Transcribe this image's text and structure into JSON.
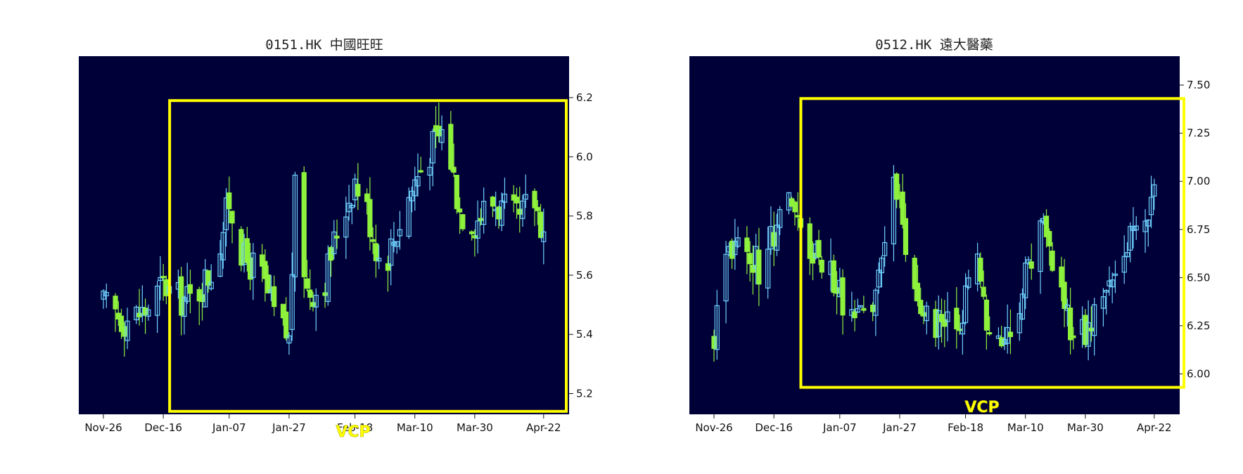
{
  "chart_data": [
    {
      "type": "candlestick",
      "title": "0151.HK 中國旺旺",
      "xlabel": "",
      "ylabel": "",
      "x_tick_labels": [
        "Nov-26",
        "Dec-16",
        "Jan-07",
        "Jan-27",
        "Feb-18",
        "Mar-10",
        "Mar-30",
        "Apr-22"
      ],
      "y_ticks": [
        5.2,
        5.4,
        5.6,
        5.8,
        6.0,
        6.2
      ],
      "ylim": [
        5.13,
        6.34
      ],
      "y_axis_side": "right",
      "background_color": "#000038",
      "up_color": "#6fd3ff",
      "down_color": "#8ef23c",
      "annotation": {
        "label": "VCP",
        "color": "#ffff00",
        "x_from": "Dec-16",
        "x_to": "Apr-22",
        "y_range": [
          5.14,
          6.19
        ]
      },
      "series": {
        "name": "",
        "close_points": [
          [
            "Nov-26",
            5.5
          ],
          [
            "Dec-03",
            5.45
          ],
          [
            "Dec-10",
            5.48
          ],
          [
            "Dec-16",
            5.57
          ],
          [
            "Dec-20",
            5.52
          ],
          [
            "Dec-26",
            5.52
          ],
          [
            "Jan-02",
            5.63
          ],
          [
            "Jan-07",
            5.85
          ],
          [
            "Jan-12",
            5.65
          ],
          [
            "Jan-17",
            5.62
          ],
          [
            "Jan-22",
            5.47
          ],
          [
            "Jan-27",
            5.38
          ],
          [
            "Jan-29",
            5.88
          ],
          [
            "Feb-02",
            5.55
          ],
          [
            "Feb-07",
            5.55
          ],
          [
            "Feb-12",
            5.75
          ],
          [
            "Feb-18",
            5.92
          ],
          [
            "Feb-22",
            5.82
          ],
          [
            "Feb-27",
            5.62
          ],
          [
            "Mar-04",
            5.75
          ],
          [
            "Mar-10",
            5.92
          ],
          [
            "Mar-15",
            6.02
          ],
          [
            "Mar-20",
            6.1
          ],
          [
            "Mar-25",
            5.82
          ],
          [
            "Mar-30",
            5.78
          ],
          [
            "Apr-04",
            5.85
          ],
          [
            "Apr-09",
            5.82
          ],
          [
            "Apr-14",
            5.78
          ],
          [
            "Apr-18",
            5.88
          ],
          [
            "Apr-22",
            5.75
          ]
        ],
        "intraday_range": 0.15
      }
    },
    {
      "type": "candlestick",
      "title": "0512.HK 遠大醫藥",
      "xlabel": "",
      "ylabel": "",
      "x_tick_labels": [
        "Nov-26",
        "Dec-16",
        "Jan-07",
        "Jan-27",
        "Feb-18",
        "Mar-10",
        "Mar-30",
        "Apr-22"
      ],
      "y_ticks": [
        6.0,
        6.25,
        6.5,
        6.75,
        7.0,
        7.25,
        7.5
      ],
      "y_tick_labels": [
        "6.00",
        "6.25",
        "6.50",
        "6.75",
        "7.00",
        "7.25",
        "7.50"
      ],
      "ylim": [
        5.79,
        7.65
      ],
      "y_axis_side": "right",
      "background_color": "#000038",
      "up_color": "#6fd3ff",
      "down_color": "#8ef23c",
      "annotation": {
        "label": "VCP",
        "color": "#ffff00",
        "x_from": "Dec-25",
        "x_to": "Apr-22",
        "y_range": [
          5.93,
          7.43
        ]
      },
      "series": {
        "name": "",
        "close_points": [
          [
            "Nov-26",
            6.2
          ],
          [
            "Dec-01",
            6.65
          ],
          [
            "Dec-06",
            6.7
          ],
          [
            "Dec-11",
            6.55
          ],
          [
            "Dec-16",
            6.75
          ],
          [
            "Dec-20",
            6.95
          ],
          [
            "Dec-25",
            6.7
          ],
          [
            "Jan-02",
            6.6
          ],
          [
            "Jan-07",
            6.4
          ],
          [
            "Jan-12",
            6.25
          ],
          [
            "Jan-17",
            6.3
          ],
          [
            "Jan-21",
            6.55
          ],
          [
            "Jan-24",
            7.1
          ],
          [
            "Jan-27",
            6.9
          ],
          [
            "Jan-31",
            6.5
          ],
          [
            "Feb-05",
            6.3
          ],
          [
            "Feb-10",
            6.25
          ],
          [
            "Feb-15",
            6.25
          ],
          [
            "Feb-18",
            6.4
          ],
          [
            "Feb-21",
            6.65
          ],
          [
            "Feb-25",
            6.3
          ],
          [
            "Mar-01",
            6.15
          ],
          [
            "Mar-05",
            6.2
          ],
          [
            "Mar-10",
            6.5
          ],
          [
            "Mar-15",
            6.8
          ],
          [
            "Mar-20",
            6.5
          ],
          [
            "Mar-25",
            6.25
          ],
          [
            "Mar-30",
            6.2
          ],
          [
            "Apr-04",
            6.35
          ],
          [
            "Apr-09",
            6.5
          ],
          [
            "Apr-14",
            6.7
          ],
          [
            "Apr-18",
            6.85
          ],
          [
            "Apr-22",
            6.9
          ]
        ],
        "intraday_range": 0.22
      }
    }
  ]
}
